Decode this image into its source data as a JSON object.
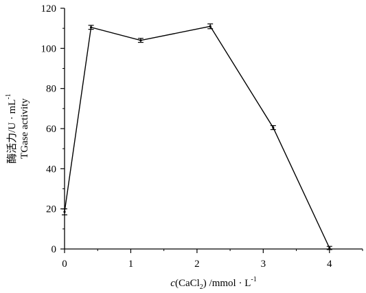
{
  "chart_data": {
    "type": "line",
    "title": "",
    "xlabel": {
      "italic": "c",
      "main": "(CaCl",
      "sub": "2",
      "rest": ") /mmol · L",
      "sup": "-1"
    },
    "ylabel": {
      "line1": {
        "main": "酶活力/U · mL",
        "sup": "-1"
      },
      "line2": "TGase activity"
    },
    "x_ticks": [
      0,
      1,
      2,
      3,
      4
    ],
    "y_ticks": [
      0,
      20,
      40,
      60,
      80,
      100,
      120
    ],
    "xlim": [
      0,
      4.5
    ],
    "ylim": [
      0,
      120
    ],
    "grid": false,
    "series": [
      {
        "x": [
          0,
          0.4,
          1.15,
          2.2,
          3.15,
          4
        ],
        "y": [
          18.5,
          110.5,
          104,
          111,
          60.5,
          0.5
        ],
        "err": [
          1.5,
          1.0,
          1.0,
          1.2,
          1.0,
          0.8
        ]
      }
    ]
  }
}
